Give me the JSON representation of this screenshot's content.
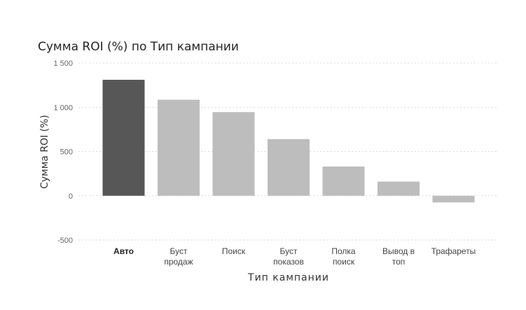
{
  "chart_data": {
    "type": "bar",
    "title": "Сумма ROI (%) по Тип кампании",
    "xlabel": "Тип кампании",
    "ylabel": "Сумма ROI (%)",
    "categories": [
      [
        "Авто"
      ],
      [
        "Буст",
        "продаж"
      ],
      [
        "Поиск"
      ],
      [
        "Буст",
        "показов"
      ],
      [
        "Полка",
        "поиск"
      ],
      [
        "Вывод в",
        "топ"
      ],
      [
        "Трафареты"
      ]
    ],
    "values": [
      1310,
      1085,
      945,
      640,
      330,
      160,
      -75
    ],
    "highlight_index": 0,
    "ylim": [
      -500,
      1500
    ],
    "yticks": [
      -500,
      0,
      500,
      1000,
      1500
    ],
    "ytick_labels": [
      "-500",
      "0",
      "500",
      "1 000",
      "1 500"
    ],
    "grid": true,
    "legend": "none",
    "colors": {
      "highlight": "#575757",
      "bar": "#bdbdbd",
      "grid": "#d9d9d9"
    }
  }
}
